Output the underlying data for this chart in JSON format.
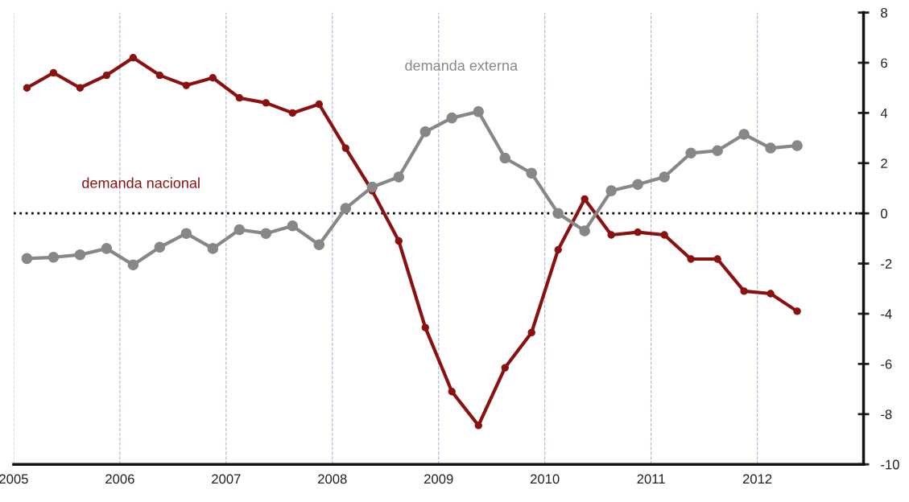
{
  "chart_data": {
    "type": "line",
    "x": [
      2005.125,
      2005.375,
      2005.625,
      2005.875,
      2006.125,
      2006.375,
      2006.625,
      2006.875,
      2007.125,
      2007.375,
      2007.625,
      2007.875,
      2008.125,
      2008.375,
      2008.625,
      2008.875,
      2009.125,
      2009.375,
      2009.625,
      2009.875,
      2010.125,
      2010.375,
      2010.625,
      2010.875,
      2011.125,
      2011.375,
      2011.625,
      2011.875,
      2012.125,
      2012.375
    ],
    "series": [
      {
        "name": "demanda nacional",
        "color": "#8b1010",
        "values": [
          5.0,
          5.6,
          5.0,
          5.5,
          6.2,
          5.5,
          5.1,
          5.4,
          4.6,
          4.4,
          4.0,
          4.35,
          2.6,
          0.9,
          -1.1,
          -4.55,
          -7.1,
          -8.45,
          -6.15,
          -4.75,
          -1.45,
          0.57,
          -0.86,
          -0.75,
          -0.86,
          -1.82,
          -1.82,
          -3.1,
          -3.2,
          -3.9
        ]
      },
      {
        "name": "demanda externa",
        "color": "#878787",
        "values": [
          -1.8,
          -1.75,
          -1.65,
          -1.4,
          -2.05,
          -1.35,
          -0.8,
          -1.4,
          -0.65,
          -0.8,
          -0.5,
          -1.25,
          0.2,
          1.05,
          1.45,
          3.25,
          3.8,
          4.05,
          2.2,
          1.6,
          0.0,
          -0.7,
          0.9,
          1.15,
          1.45,
          2.4,
          2.5,
          3.15,
          2.6,
          2.7
        ]
      }
    ],
    "xlim": [
      2005,
      2013
    ],
    "xticks": [
      2005,
      2006,
      2007,
      2008,
      2009,
      2010,
      2011,
      2012,
      {
        "value": 2013,
        "label": null
      }
    ],
    "ylim": [
      -10,
      8
    ],
    "yticks": [
      -10,
      -8,
      -6,
      -4,
      -2,
      0,
      2,
      4,
      6,
      8
    ],
    "ref_lines": [
      {
        "axis": "y",
        "value": 0,
        "color": "#000000",
        "line_style": "dotted"
      }
    ],
    "grid": "x",
    "marker": "circle",
    "line_style": "solid",
    "legend": false
  }
}
